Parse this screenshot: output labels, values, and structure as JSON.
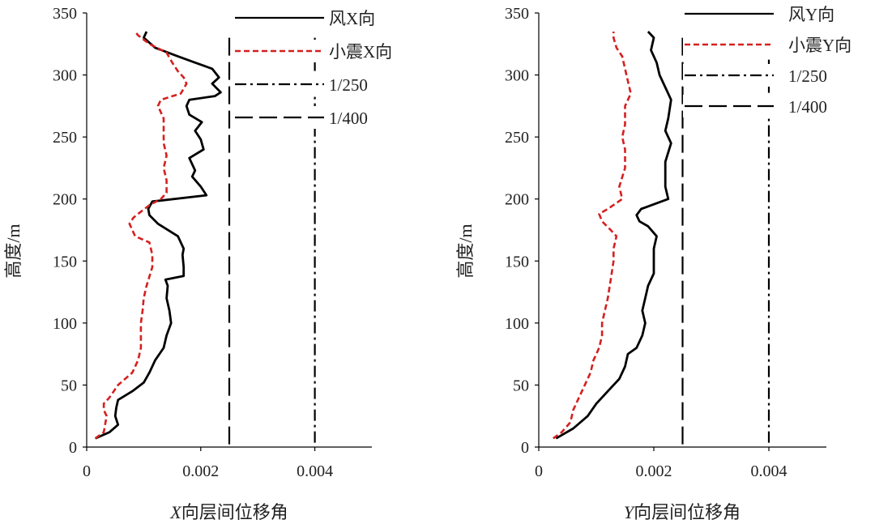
{
  "colors": {
    "axis": "#000000",
    "wind": "#000000",
    "quake": "#d42020",
    "text": "#222222"
  },
  "chart_data": [
    {
      "type": "line",
      "xlabel_italic": "X",
      "xlabel_rest": "向层间位移角",
      "ylabel": "高度/m",
      "xlim": [
        0,
        0.005
      ],
      "ylim": [
        0,
        350
      ],
      "xticks": [
        0,
        0.002,
        0.004
      ],
      "xtick_labels": [
        "0",
        "0.002",
        "0.004"
      ],
      "yticks": [
        0,
        50,
        100,
        150,
        200,
        250,
        300,
        350
      ],
      "ytick_labels": [
        "0",
        "50",
        "100",
        "150",
        "200",
        "250",
        "300",
        "350"
      ],
      "limits": [
        {
          "name": "1/250",
          "value": 0.004,
          "style": "dashdot"
        },
        {
          "name": "1/400",
          "value": 0.0025,
          "style": "longdash"
        }
      ],
      "series": [
        {
          "name": "风X向",
          "style": "solid",
          "points": [
            [
              0.00015,
              7
            ],
            [
              0.0004,
              12
            ],
            [
              0.00055,
              18
            ],
            [
              0.0005,
              25
            ],
            [
              0.00052,
              32
            ],
            [
              0.00055,
              38
            ],
            [
              0.0008,
              45
            ],
            [
              0.001,
              52
            ],
            [
              0.0011,
              60
            ],
            [
              0.0012,
              70
            ],
            [
              0.00135,
              80
            ],
            [
              0.0014,
              90
            ],
            [
              0.00148,
              100
            ],
            [
              0.00145,
              110
            ],
            [
              0.0014,
              120
            ],
            [
              0.00142,
              130
            ],
            [
              0.00138,
              135
            ],
            [
              0.0017,
              138
            ],
            [
              0.0017,
              145
            ],
            [
              0.00168,
              155
            ],
            [
              0.0017,
              160
            ],
            [
              0.0016,
              170
            ],
            [
              0.00125,
              180
            ],
            [
              0.0011,
              187
            ],
            [
              0.00108,
              192
            ],
            [
              0.00115,
              198
            ],
            [
              0.0021,
              203
            ],
            [
              0.002,
              210
            ],
            [
              0.00185,
              218
            ],
            [
              0.0019,
              223
            ],
            [
              0.0018,
              233
            ],
            [
              0.00205,
              240
            ],
            [
              0.002,
              248
            ],
            [
              0.0019,
              255
            ],
            [
              0.00202,
              262
            ],
            [
              0.0018,
              268
            ],
            [
              0.00175,
              275
            ],
            [
              0.0018,
              280
            ],
            [
              0.00225,
              283
            ],
            [
              0.00235,
              286
            ],
            [
              0.0022,
              293
            ],
            [
              0.00232,
              298
            ],
            [
              0.0022,
              305
            ],
            [
              0.0019,
              310
            ],
            [
              0.0016,
              315
            ],
            [
              0.0012,
              322
            ],
            [
              0.001,
              330
            ],
            [
              0.00105,
              335
            ]
          ]
        },
        {
          "name": "小震X向",
          "style": "dashed",
          "points": [
            [
              0.00015,
              7
            ],
            [
              0.0003,
              12
            ],
            [
              0.00035,
              25
            ],
            [
              0.0003,
              30
            ],
            [
              0.0003,
              35
            ],
            [
              0.0004,
              40
            ],
            [
              0.00055,
              50
            ],
            [
              0.0008,
              60
            ],
            [
              0.0009,
              70
            ],
            [
              0.00095,
              80
            ],
            [
              0.00095,
              100
            ],
            [
              0.00098,
              110
            ],
            [
              0.001,
              120
            ],
            [
              0.00105,
              130
            ],
            [
              0.00115,
              145
            ],
            [
              0.00115,
              155
            ],
            [
              0.0011,
              165
            ],
            [
              0.00085,
              170
            ],
            [
              0.00075,
              180
            ],
            [
              0.00082,
              185
            ],
            [
              0.0009,
              188
            ],
            [
              0.0011,
              195
            ],
            [
              0.0013,
              200
            ],
            [
              0.0014,
              205
            ],
            [
              0.0014,
              215
            ],
            [
              0.00135,
              225
            ],
            [
              0.0014,
              235
            ],
            [
              0.00135,
              245
            ],
            [
              0.00135,
              255
            ],
            [
              0.00135,
              265
            ],
            [
              0.00125,
              275
            ],
            [
              0.0013,
              280
            ],
            [
              0.00165,
              285
            ],
            [
              0.00175,
              293
            ],
            [
              0.0017,
              298
            ],
            [
              0.0016,
              303
            ],
            [
              0.0015,
              310
            ],
            [
              0.0014,
              318
            ],
            [
              0.0011,
              325
            ],
            [
              0.0009,
              332
            ],
            [
              0.00085,
              335
            ]
          ]
        }
      ],
      "legend": [
        "风X向",
        "小震X向",
        "1/250",
        "1/400"
      ]
    },
    {
      "type": "line",
      "xlabel_italic": "Y",
      "xlabel_rest": "向层间位移角",
      "ylabel": "高度/m",
      "xlim": [
        0,
        0.005
      ],
      "ylim": [
        0,
        350
      ],
      "xticks": [
        0,
        0.002,
        0.004
      ],
      "xtick_labels": [
        "0",
        "0.002",
        "0.004"
      ],
      "yticks": [
        0,
        50,
        100,
        150,
        200,
        250,
        300,
        350
      ],
      "ytick_labels": [
        "0",
        "50",
        "100",
        "150",
        "200",
        "250",
        "300",
        "350"
      ],
      "limits": [
        {
          "name": "1/250",
          "value": 0.004,
          "style": "dashdot"
        },
        {
          "name": "1/400",
          "value": 0.0025,
          "style": "longdash"
        }
      ],
      "series": [
        {
          "name": "风Y向",
          "style": "solid",
          "points": [
            [
              0.0003,
              7
            ],
            [
              0.0006,
              15
            ],
            [
              0.00085,
              25
            ],
            [
              0.001,
              35
            ],
            [
              0.0012,
              45
            ],
            [
              0.0014,
              55
            ],
            [
              0.0015,
              65
            ],
            [
              0.00155,
              75
            ],
            [
              0.0017,
              80
            ],
            [
              0.0018,
              90
            ],
            [
              0.00185,
              100
            ],
            [
              0.0018,
              110
            ],
            [
              0.00185,
              120
            ],
            [
              0.0019,
              130
            ],
            [
              0.002,
              140
            ],
            [
              0.002,
              150
            ],
            [
              0.002,
              160
            ],
            [
              0.00205,
              170
            ],
            [
              0.0019,
              178
            ],
            [
              0.00175,
              182
            ],
            [
              0.0017,
              187
            ],
            [
              0.00178,
              192
            ],
            [
              0.00225,
              200
            ],
            [
              0.0022,
              210
            ],
            [
              0.0022,
              220
            ],
            [
              0.0022,
              230
            ],
            [
              0.0023,
              245
            ],
            [
              0.0022,
              255
            ],
            [
              0.00225,
              265
            ],
            [
              0.0023,
              280
            ],
            [
              0.0022,
              290
            ],
            [
              0.0021,
              300
            ],
            [
              0.00205,
              310
            ],
            [
              0.00195,
              320
            ],
            [
              0.002,
              330
            ],
            [
              0.0019,
              335
            ]
          ]
        },
        {
          "name": "小震Y向",
          "style": "dashed",
          "points": [
            [
              0.00025,
              7
            ],
            [
              0.0004,
              12
            ],
            [
              0.00055,
              20
            ],
            [
              0.0006,
              30
            ],
            [
              0.0007,
              40
            ],
            [
              0.0008,
              50
            ],
            [
              0.0009,
              60
            ],
            [
              0.00095,
              70
            ],
            [
              0.00105,
              80
            ],
            [
              0.0011,
              90
            ],
            [
              0.0011,
              100
            ],
            [
              0.00115,
              110
            ],
            [
              0.0012,
              120
            ],
            [
              0.00125,
              135
            ],
            [
              0.0013,
              150
            ],
            [
              0.0013,
              160
            ],
            [
              0.00135,
              170
            ],
            [
              0.00125,
              175
            ],
            [
              0.0011,
              182
            ],
            [
              0.00105,
              188
            ],
            [
              0.0012,
              192
            ],
            [
              0.00145,
              200
            ],
            [
              0.0014,
              210
            ],
            [
              0.0015,
              225
            ],
            [
              0.0015,
              240
            ],
            [
              0.00145,
              250
            ],
            [
              0.0015,
              260
            ],
            [
              0.0015,
              275
            ],
            [
              0.0016,
              285
            ],
            [
              0.00155,
              295
            ],
            [
              0.0015,
              305
            ],
            [
              0.00145,
              315
            ],
            [
              0.00135,
              322
            ],
            [
              0.0013,
              330
            ],
            [
              0.0013,
              335
            ]
          ]
        }
      ],
      "legend": [
        "风Y向",
        "小震Y向",
        "1/250",
        "1/400"
      ]
    }
  ]
}
